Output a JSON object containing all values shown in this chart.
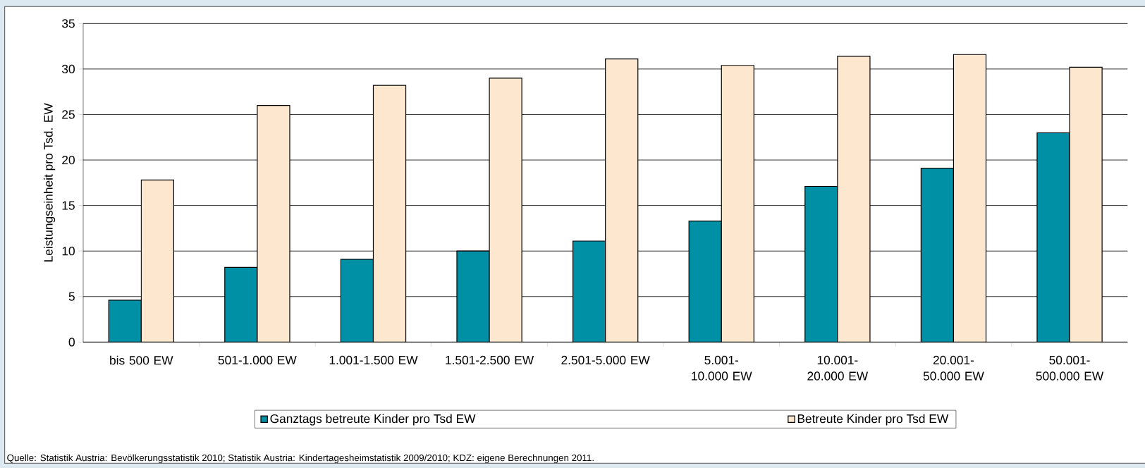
{
  "chart_data": {
    "type": "bar",
    "ylabel": "Leistungseinheit pro Tsd. EW",
    "categories": [
      "bis 500 EW",
      "501-1.000 EW",
      "1.001-1.500 EW",
      "1.501-2.500 EW",
      "2.501-5.000 EW",
      "5.001-10.000 EW",
      "10.001-20.000 EW",
      "20.001-50.000 EW",
      "50.001-500.000 EW"
    ],
    "series": [
      {
        "name": "Ganztags betreute Kinder pro Tsd EW",
        "color": "#0090a6",
        "values": [
          4.6,
          8.2,
          9.1,
          10.0,
          11.1,
          13.3,
          17.1,
          19.1,
          23.0
        ]
      },
      {
        "name": "Betreute Kinder pro Tsd EW",
        "color": "#fde8cf",
        "values": [
          17.8,
          26.0,
          28.2,
          29.0,
          31.1,
          30.4,
          31.4,
          31.6,
          30.2
        ]
      }
    ],
    "ylim": [
      0,
      35
    ],
    "yticks": [
      0,
      5,
      10,
      15,
      20,
      25,
      30,
      35
    ],
    "grid": "y",
    "legend": "bottom",
    "annotations": [
      "Quelle: Statistik Austria: Bevölkerungsstatistik 2010; Statistik Austria: Kindertagesheimstatistik 2009/2010; KDZ: eigene Berechnungen 2011."
    ]
  }
}
